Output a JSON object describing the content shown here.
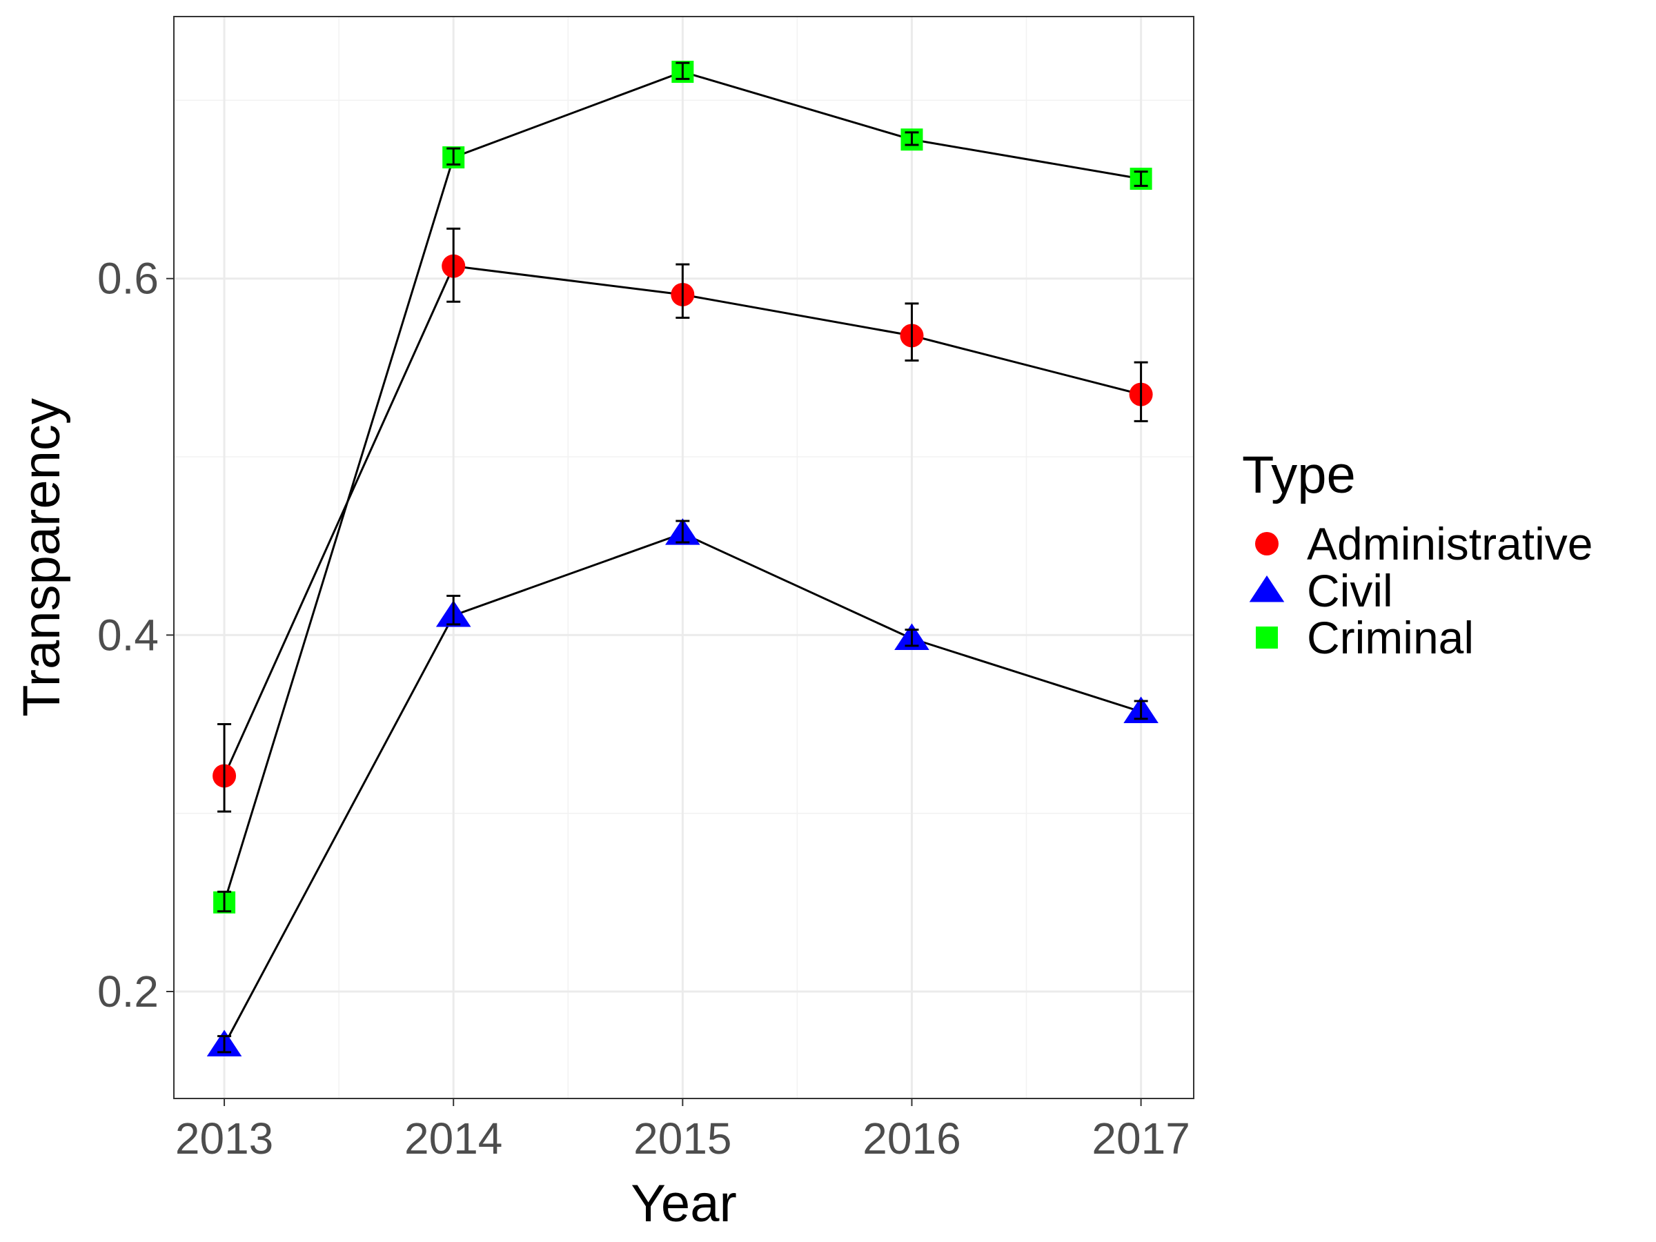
{
  "chart_data": {
    "type": "line",
    "xlabel": "Year",
    "ylabel": "Transparency",
    "x": [
      2013,
      2014,
      2015,
      2016,
      2017
    ],
    "x_tick_labels": [
      "2013",
      "2014",
      "2015",
      "2016",
      "2017"
    ],
    "y_ticks": [
      0.2,
      0.4,
      0.6
    ],
    "y_tick_labels": [
      "0.2",
      "0.4",
      "0.6"
    ],
    "xlim": [
      2012.78,
      2017.23
    ],
    "ylim": [
      0.14,
      0.747
    ],
    "grid": true,
    "legend": {
      "title": "Type",
      "position": "right"
    },
    "series": [
      {
        "name": "Administrative",
        "color": "#ff0000",
        "marker": "circle",
        "values": [
          0.321,
          0.607,
          0.591,
          0.568,
          0.535
        ],
        "error_low": [
          0.301,
          0.587,
          0.578,
          0.554,
          0.52
        ],
        "error_high": [
          0.35,
          0.628,
          0.608,
          0.586,
          0.553
        ]
      },
      {
        "name": "Civil",
        "color": "#0000ff",
        "marker": "triangle",
        "values": [
          0.17,
          0.411,
          0.457,
          0.398,
          0.357
        ],
        "error_low": [
          0.166,
          0.406,
          0.452,
          0.394,
          0.353
        ],
        "error_high": [
          0.175,
          0.422,
          0.464,
          0.403,
          0.363
        ]
      },
      {
        "name": "Criminal",
        "color": "#00ff00",
        "marker": "square",
        "values": [
          0.25,
          0.668,
          0.716,
          0.678,
          0.656
        ],
        "error_low": [
          0.245,
          0.664,
          0.712,
          0.675,
          0.652
        ],
        "error_high": [
          0.256,
          0.673,
          0.721,
          0.682,
          0.66
        ]
      }
    ]
  }
}
